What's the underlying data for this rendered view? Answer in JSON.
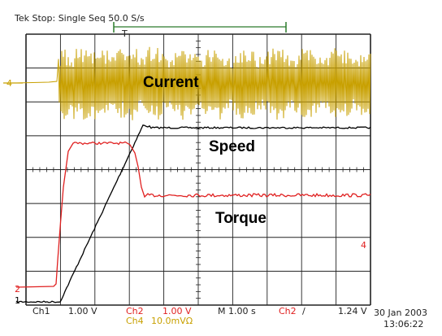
{
  "status": {
    "header": "Tek Stop: Single Seq 50.0 S/s",
    "trigger_marker": "T"
  },
  "labels": {
    "current": "Current",
    "speed": "Speed",
    "torque": "Torque"
  },
  "markers": {
    "ch1": "1",
    "ch2": "2",
    "ch4_left": "4",
    "ch4_right": "4"
  },
  "readout": {
    "ch1": "Ch1",
    "ch1_scale": "1.00 V",
    "ch2": "Ch2",
    "ch2_scale": "1.00 V",
    "ch4": "Ch4",
    "ch4_scale": "10.0mVΩ",
    "timebase": "M 1.00 s",
    "trig_ch": "Ch2",
    "trig_slope": "/",
    "trig_level": "1.24 V",
    "date": "30 Jan 2003",
    "time": "13:06:22"
  },
  "colors": {
    "current": "#c8a000",
    "speed": "#000000",
    "torque": "#e02020",
    "grid": "#222222"
  }
}
